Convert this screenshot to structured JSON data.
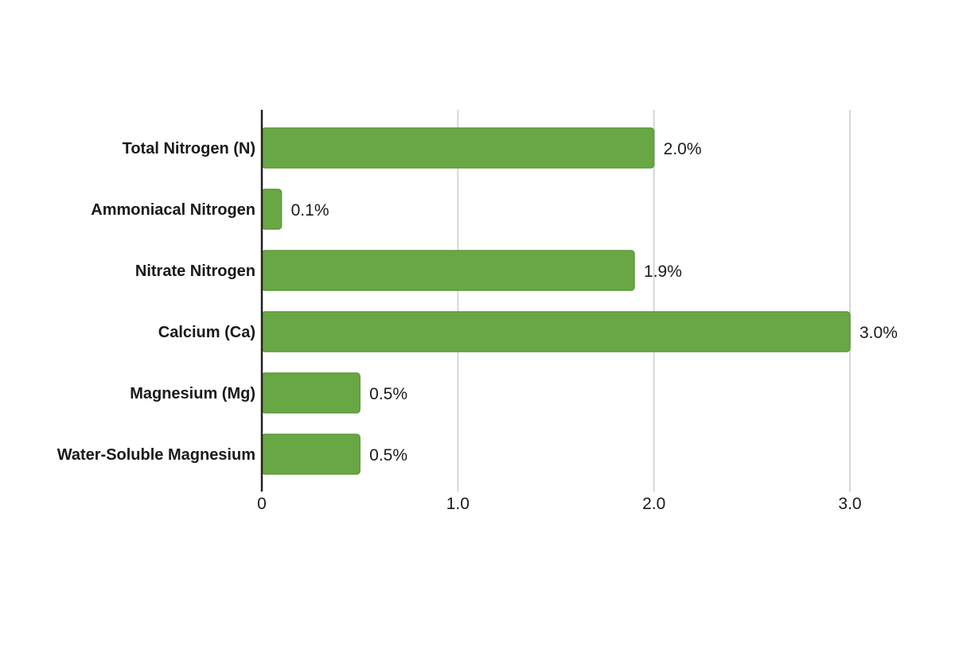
{
  "colors": {
    "bar": "#69a744",
    "bar_edge": "#5b9a3a",
    "grid": "#d6d6d6",
    "axis": "#222222",
    "text": "#1a1a1a"
  },
  "chart_data": {
    "type": "bar",
    "orientation": "horizontal",
    "categories": [
      "Total Nitrogen (N)",
      "Ammoniacal Nitrogen",
      "Nitrate Nitrogen",
      "Calcium (Ca)",
      "Magnesium (Mg)",
      "Water-Soluble Magnesium"
    ],
    "values": [
      2.0,
      0.1,
      1.9,
      3.0,
      0.5,
      0.5
    ],
    "value_labels": [
      "2.0%",
      "0.1%",
      "1.9%",
      "3.0%",
      "0.5%",
      "0.5%"
    ],
    "xlim": [
      0,
      3.0
    ],
    "xticks": [
      0,
      1.0,
      2.0,
      3.0
    ],
    "xtick_labels": [
      "0",
      "1.0",
      "2.0",
      "3.0"
    ],
    "grid": true,
    "legend": "none"
  }
}
